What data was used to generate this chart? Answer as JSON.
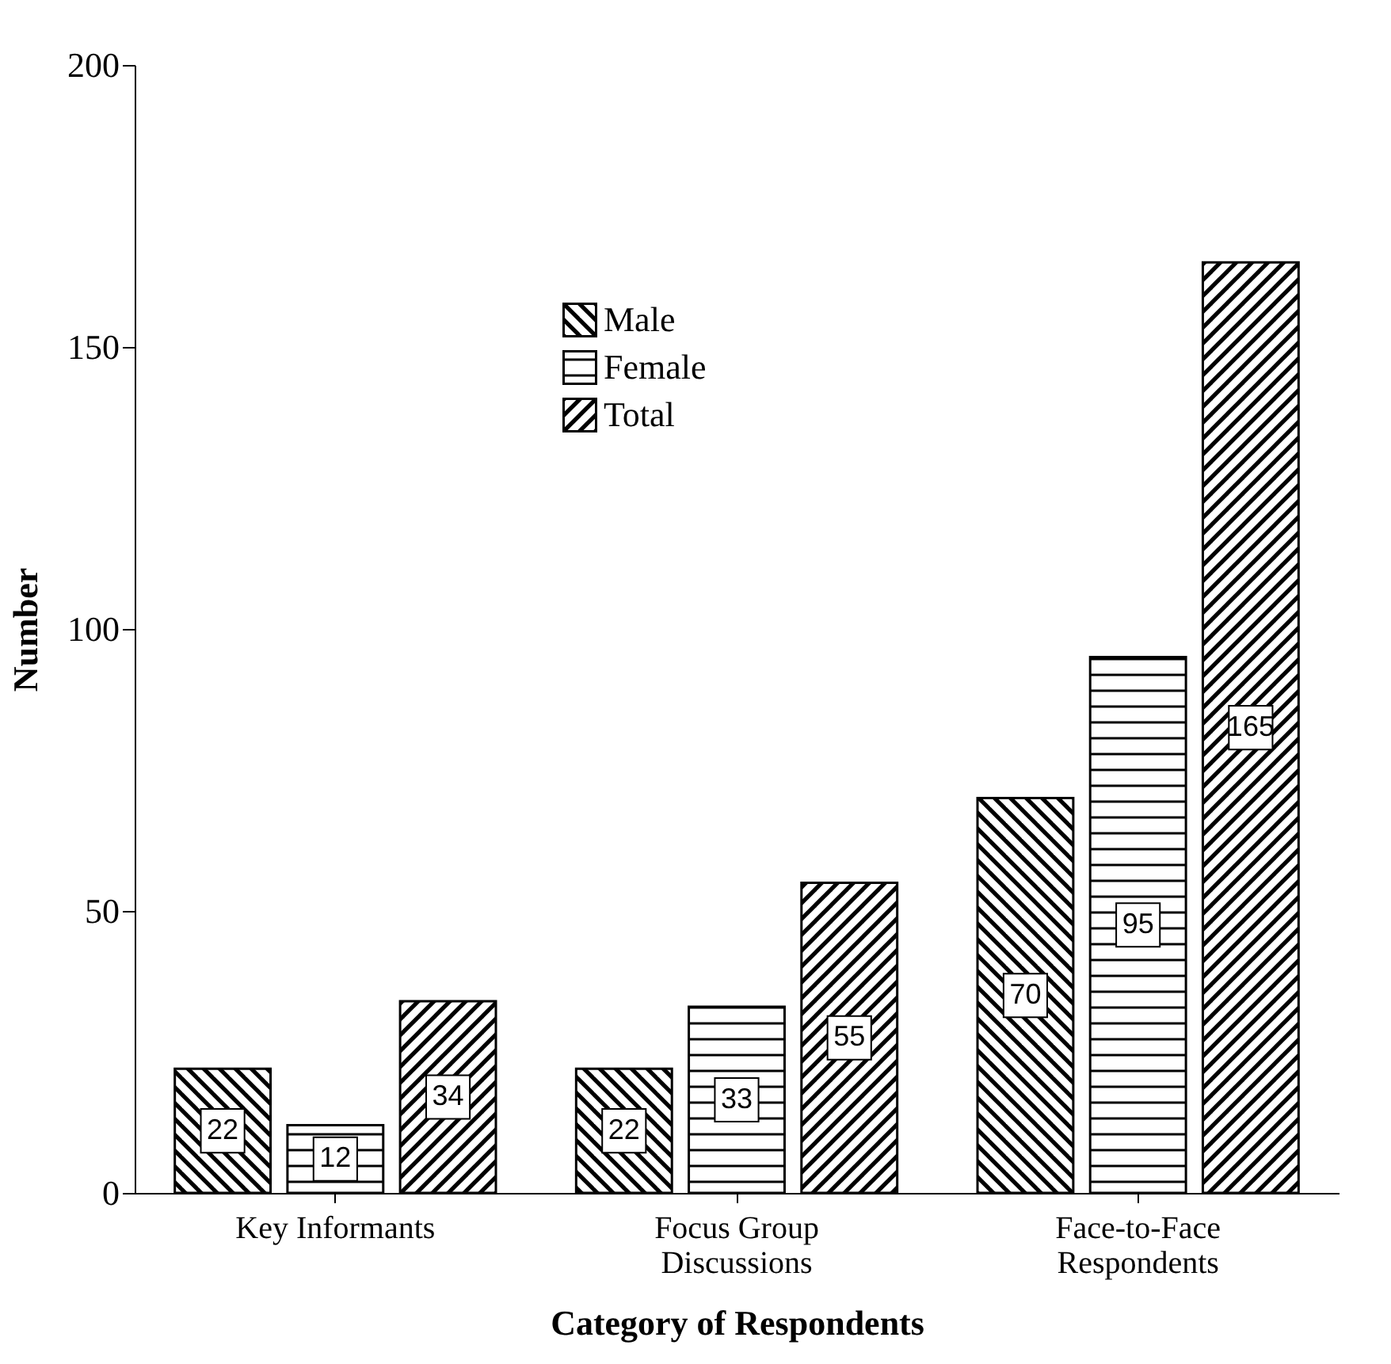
{
  "chart_data": {
    "type": "bar",
    "xlabel": "Category of Respondents",
    "ylabel": "Number",
    "categories": [
      "Key Informants",
      "Focus Group Discussions",
      "Face-to-Face Respondents"
    ],
    "series": [
      {
        "name": "Male",
        "color": "#000000",
        "values": [
          22,
          22,
          70
        ]
      },
      {
        "name": "Female",
        "color": "#000000",
        "values": [
          12,
          33,
          95
        ]
      },
      {
        "name": "Total",
        "color": "#000000",
        "values": [
          34,
          55,
          165
        ]
      }
    ],
    "ylim": [
      0,
      200
    ],
    "yticks": [
      0,
      50,
      100,
      150,
      200
    ],
    "grid": false,
    "legend": "top",
    "data_labels": true
  }
}
